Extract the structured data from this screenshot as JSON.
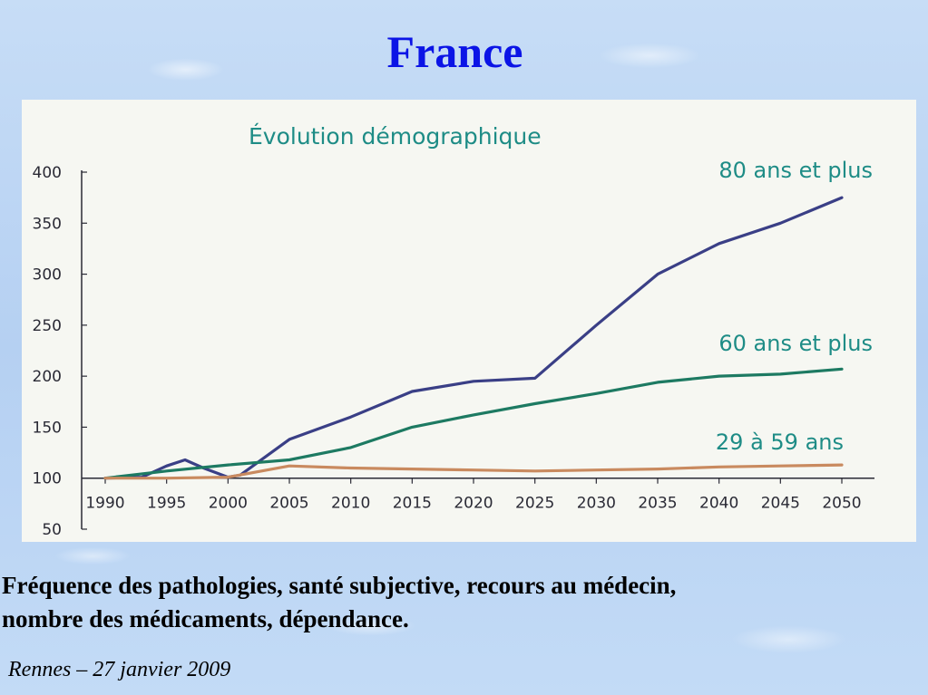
{
  "slide": {
    "title": "France",
    "caption_line1": "Fréquence des pathologies, santé subjective, recours au médecin,",
    "caption_line2": "nombre des médicaments, dépendance.",
    "footer": "Rennes – 27 janvier 2009"
  },
  "chart_data": {
    "type": "line",
    "title": "Évolution démographique",
    "xlabel": "",
    "ylabel": "",
    "x": [
      1990,
      1995,
      2000,
      2005,
      2010,
      2015,
      2020,
      2025,
      2030,
      2035,
      2040,
      2045,
      2050
    ],
    "x_tick_labels": [
      "1990",
      "1995",
      "2000",
      "2005",
      "2010",
      "2015",
      "2020",
      "2025",
      "2030",
      "2035",
      "2040",
      "2045",
      "2050"
    ],
    "y_ticks": [
      50,
      100,
      150,
      200,
      250,
      300,
      350,
      400
    ],
    "y_tick_labels": [
      "50",
      "100",
      "150",
      "200",
      "250",
      "300",
      "350",
      "400"
    ],
    "ylim": [
      50,
      400
    ],
    "grid": false,
    "x_axis_at": 100,
    "series": [
      {
        "name": "80 ans et plus",
        "color": "#3a3f86",
        "points": [
          [
            1990,
            100
          ],
          [
            1993,
            101
          ],
          [
            1995,
            112
          ],
          [
            1996.5,
            118
          ],
          [
            1998,
            110
          ],
          [
            2000,
            101
          ],
          [
            2001,
            103
          ],
          [
            2005,
            138
          ],
          [
            2010,
            160
          ],
          [
            2015,
            185
          ],
          [
            2020,
            195
          ],
          [
            2025,
            198
          ],
          [
            2030,
            250
          ],
          [
            2035,
            300
          ],
          [
            2040,
            330
          ],
          [
            2045,
            350
          ],
          [
            2050,
            375
          ]
        ]
      },
      {
        "name": "60 ans et plus",
        "color": "#1d7a62",
        "points": [
          [
            1990,
            100
          ],
          [
            1995,
            107
          ],
          [
            2000,
            113
          ],
          [
            2005,
            118
          ],
          [
            2010,
            130
          ],
          [
            2015,
            150
          ],
          [
            2020,
            162
          ],
          [
            2025,
            173
          ],
          [
            2030,
            183
          ],
          [
            2035,
            194
          ],
          [
            2040,
            200
          ],
          [
            2045,
            202
          ],
          [
            2050,
            207
          ]
        ]
      },
      {
        "name": "29 à 59 ans",
        "color": "#c98a5f",
        "points": [
          [
            1990,
            100
          ],
          [
            1995,
            100
          ],
          [
            2000,
            101
          ],
          [
            2005,
            112
          ],
          [
            2010,
            110
          ],
          [
            2015,
            109
          ],
          [
            2020,
            108
          ],
          [
            2025,
            107
          ],
          [
            2030,
            108
          ],
          [
            2035,
            109
          ],
          [
            2040,
            111
          ],
          [
            2045,
            112
          ],
          [
            2050,
            113
          ]
        ]
      }
    ]
  }
}
